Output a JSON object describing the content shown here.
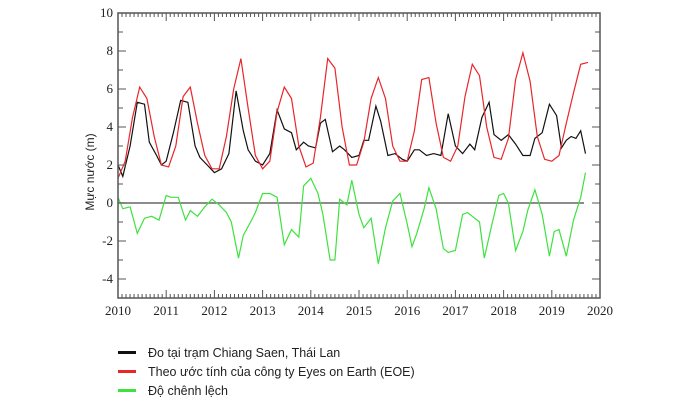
{
  "chart_data": {
    "type": "line",
    "ylabel": "Mực nước (m)",
    "xlim": [
      2010,
      2020
    ],
    "ylim": [
      -5,
      10
    ],
    "xticks": [
      "2010",
      "2011",
      "2012",
      "2013",
      "2014",
      "2015",
      "2016",
      "2017",
      "2018",
      "2019",
      "2020"
    ],
    "yticks": [
      "10",
      "8",
      "6",
      "4",
      "2",
      "0",
      "-2",
      "-4"
    ],
    "colors": {
      "station": "#111111",
      "eoe": "#e8262b",
      "diff": "#3ee23e",
      "zero": "#666666"
    },
    "series": [
      {
        "name": "Đo tại trạm Chiang Saen, Thái Lan",
        "key": "station",
        "x": [
          2010,
          2010.1,
          2010.25,
          2010.4,
          2010.55,
          2010.65,
          2010.8,
          2010.9,
          2011.0,
          2011.15,
          2011.3,
          2011.45,
          2011.6,
          2011.7,
          2011.85,
          2012.0,
          2012.15,
          2012.3,
          2012.45,
          2012.6,
          2012.7,
          2012.85,
          2013.0,
          2013.15,
          2013.3,
          2013.45,
          2013.6,
          2013.7,
          2013.85,
          2013.95,
          2014.1,
          2014.2,
          2014.3,
          2014.45,
          2014.6,
          2014.7,
          2014.85,
          2015.0,
          2015.1,
          2015.2,
          2015.35,
          2015.45,
          2015.6,
          2015.75,
          2015.9,
          2016.0,
          2016.15,
          2016.25,
          2016.4,
          2016.55,
          2016.7,
          2016.85,
          2017.0,
          2017.15,
          2017.3,
          2017.4,
          2017.55,
          2017.7,
          2017.8,
          2017.95,
          2018.1,
          2018.25,
          2018.4,
          2018.55,
          2018.65,
          2018.8,
          2018.95,
          2019.1,
          2019.2,
          2019.3,
          2019.4,
          2019.5,
          2019.6,
          2019.7
        ],
        "y": [
          2.0,
          1.4,
          3.0,
          5.3,
          5.2,
          3.2,
          2.5,
          2.0,
          2.2,
          3.7,
          5.4,
          5.3,
          3.0,
          2.4,
          2.0,
          1.6,
          1.8,
          2.6,
          5.9,
          3.8,
          2.8,
          2.2,
          2.0,
          2.6,
          4.9,
          3.9,
          3.7,
          2.8,
          3.2,
          3.0,
          2.9,
          4.2,
          4.4,
          2.7,
          3.0,
          2.8,
          2.4,
          2.5,
          3.3,
          3.3,
          5.1,
          4.3,
          2.5,
          2.6,
          2.3,
          2.2,
          2.8,
          2.8,
          2.5,
          2.6,
          2.5,
          4.7,
          3.0,
          2.6,
          3.1,
          2.8,
          4.5,
          5.3,
          3.6,
          3.3,
          3.6,
          3.1,
          2.5,
          2.5,
          3.4,
          3.7,
          5.2,
          4.6,
          2.9,
          3.3,
          3.5,
          3.4,
          3.8,
          2.6
        ]
      },
      {
        "name": "Theo ước tính của công ty Eyes on Earth (EOE)",
        "key": "eoe",
        "x": [
          2010,
          2010.15,
          2010.3,
          2010.45,
          2010.6,
          2010.75,
          2010.9,
          2011.05,
          2011.2,
          2011.35,
          2011.5,
          2011.65,
          2011.8,
          2011.95,
          2012.1,
          2012.25,
          2012.4,
          2012.55,
          2012.7,
          2012.85,
          2013.0,
          2013.15,
          2013.3,
          2013.45,
          2013.6,
          2013.75,
          2013.9,
          2014.05,
          2014.2,
          2014.35,
          2014.5,
          2014.65,
          2014.8,
          2014.95,
          2015.1,
          2015.25,
          2015.4,
          2015.55,
          2015.7,
          2015.85,
          2016.0,
          2016.15,
          2016.3,
          2016.45,
          2016.6,
          2016.75,
          2016.9,
          2017.05,
          2017.2,
          2017.35,
          2017.5,
          2017.65,
          2017.8,
          2017.95,
          2018.1,
          2018.25,
          2018.4,
          2018.55,
          2018.7,
          2018.85,
          2019.0,
          2019.15,
          2019.3,
          2019.45,
          2019.6,
          2019.75
        ],
        "y": [
          1.3,
          2.2,
          4.5,
          6.1,
          5.5,
          3.5,
          2.0,
          1.9,
          3.0,
          5.6,
          6.1,
          4.2,
          2.5,
          1.8,
          1.8,
          3.5,
          6.0,
          7.6,
          5.0,
          2.5,
          1.8,
          2.2,
          4.8,
          6.1,
          5.5,
          3.0,
          1.9,
          2.1,
          4.5,
          7.6,
          7.1,
          4.0,
          2.0,
          2.0,
          3.2,
          5.5,
          6.6,
          5.5,
          3.0,
          2.2,
          2.2,
          3.8,
          6.5,
          6.6,
          4.2,
          2.4,
          2.2,
          3.0,
          5.6,
          7.3,
          6.7,
          4.0,
          2.4,
          2.3,
          3.4,
          6.5,
          7.9,
          6.4,
          3.5,
          2.3,
          2.2,
          2.5,
          4.2,
          5.8,
          7.3,
          7.4
        ]
      },
      {
        "name": "Độ chênh lệch",
        "key": "diff",
        "x": [
          2010,
          2010.1,
          2010.25,
          2010.4,
          2010.55,
          2010.7,
          2010.85,
          2011.0,
          2011.1,
          2011.25,
          2011.4,
          2011.5,
          2011.65,
          2011.8,
          2011.95,
          2012.1,
          2012.25,
          2012.35,
          2012.5,
          2012.6,
          2012.75,
          2012.85,
          2013.0,
          2013.15,
          2013.3,
          2013.45,
          2013.6,
          2013.75,
          2013.85,
          2014.0,
          2014.15,
          2014.25,
          2014.4,
          2014.5,
          2014.6,
          2014.75,
          2014.85,
          2015.0,
          2015.1,
          2015.25,
          2015.4,
          2015.55,
          2015.7,
          2015.85,
          2016.0,
          2016.1,
          2016.2,
          2016.35,
          2016.45,
          2016.6,
          2016.75,
          2016.85,
          2017.0,
          2017.15,
          2017.25,
          2017.35,
          2017.5,
          2017.6,
          2017.75,
          2017.9,
          2018.0,
          2018.1,
          2018.25,
          2018.4,
          2018.5,
          2018.65,
          2018.8,
          2018.95,
          2019.05,
          2019.15,
          2019.3,
          2019.45,
          2019.6,
          2019.7
        ],
        "y": [
          0.3,
          -0.3,
          -0.2,
          -1.6,
          -0.8,
          -0.7,
          -0.9,
          0.4,
          0.3,
          0.3,
          -0.9,
          -0.4,
          -0.7,
          -0.2,
          0.2,
          -0.1,
          -0.5,
          -1.0,
          -2.9,
          -1.7,
          -1.0,
          -0.5,
          0.5,
          0.5,
          0.3,
          -2.2,
          -1.4,
          -1.8,
          0.9,
          1.3,
          0.5,
          -0.6,
          -3.0,
          -3.0,
          0.2,
          -0.1,
          1.2,
          -0.6,
          -1.3,
          -0.8,
          -3.2,
          -1.3,
          0.1,
          0.5,
          -1.1,
          -2.3,
          -1.6,
          -0.3,
          0.8,
          -0.3,
          -2.4,
          -2.6,
          -2.5,
          -0.6,
          -0.5,
          -0.7,
          -1.0,
          -2.9,
          -1.2,
          0.4,
          0.5,
          0.0,
          -2.5,
          -1.5,
          -0.4,
          0.7,
          -0.6,
          -2.8,
          -1.5,
          -1.4,
          -2.8,
          -0.9,
          0.3,
          1.6
        ]
      }
    ]
  },
  "legend": [
    {
      "label": "Đo tại trạm Chiang Saen, Thái Lan",
      "key": "station"
    },
    {
      "label": "Theo ước tính của công ty Eyes on Earth (EOE)",
      "key": "eoe"
    },
    {
      "label": "Độ chênh lệch",
      "key": "diff"
    }
  ]
}
